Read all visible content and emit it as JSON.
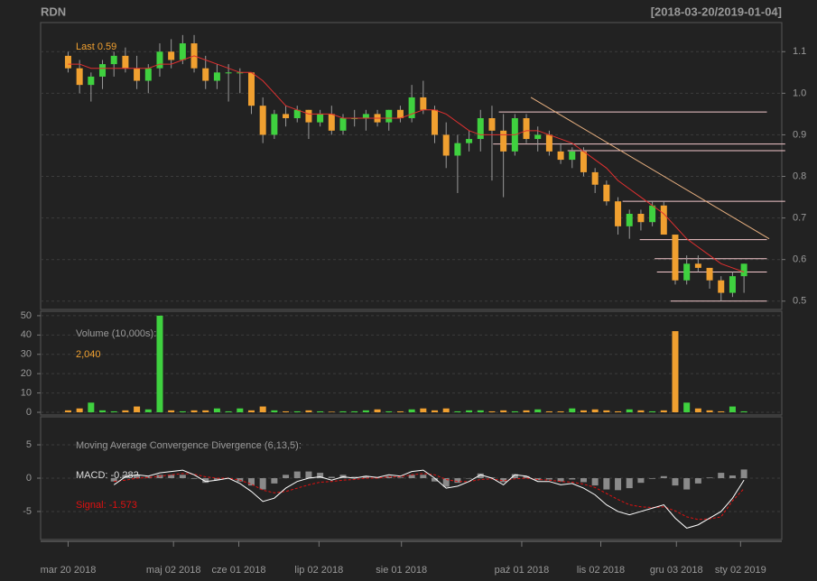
{
  "chart_data": [
    {
      "type": "candlestick",
      "title": "RDN",
      "subtitle": "[2018-03-20/2019-01-04]",
      "annotation": "Last 0.59",
      "up_color": "#3fd13f",
      "down_color": "#f0a030",
      "ma_color": "#e03030",
      "ylim": [
        0.48,
        1.17
      ],
      "xlim": [
        -2.4,
        62.3
      ],
      "yticks": [
        0.5,
        0.6,
        0.7,
        0.8,
        0.9,
        {
          "value": 1,
          "label": "1.0"
        },
        1.1
      ],
      "grid": true,
      "open": [
        1.09,
        1.06,
        1.02,
        1.04,
        1.07,
        1.09,
        1.06,
        1.03,
        1.06,
        1.1,
        1.08,
        1.12,
        1.06,
        1.03,
        1.05,
        1.05,
        1.05,
        0.97,
        0.9,
        0.95,
        0.94,
        0.96,
        0.93,
        0.95,
        0.91,
        0.94,
        0.94,
        0.95,
        0.93,
        0.96,
        0.94,
        0.99,
        0.96,
        0.9,
        0.85,
        0.88,
        0.89,
        0.94,
        0.91,
        0.86,
        0.94,
        0.89,
        0.9,
        0.86,
        0.84,
        0.86,
        0.81,
        0.78,
        0.74,
        0.68,
        0.71,
        0.69,
        0.73,
        0.66,
        0.55,
        0.59,
        0.58,
        0.55,
        0.52,
        0.56
      ],
      "high": [
        1.1,
        1.08,
        1.05,
        1.08,
        1.1,
        1.11,
        1.09,
        1.07,
        1.12,
        1.13,
        1.14,
        1.14,
        1.09,
        1.07,
        1.07,
        1.06,
        1.05,
        0.99,
        0.96,
        0.97,
        0.97,
        0.96,
        0.96,
        0.97,
        0.95,
        0.96,
        0.96,
        0.96,
        0.96,
        0.97,
        1.02,
        1.03,
        0.97,
        0.93,
        0.9,
        0.91,
        0.96,
        0.97,
        0.95,
        0.95,
        0.95,
        0.92,
        0.91,
        0.88,
        0.87,
        0.87,
        0.82,
        0.79,
        0.75,
        0.72,
        0.72,
        0.74,
        0.74,
        0.66,
        0.61,
        0.61,
        0.58,
        0.56,
        0.57,
        0.59
      ],
      "low": [
        1.05,
        1.0,
        0.98,
        1.01,
        1.04,
        1.05,
        1.01,
        1.0,
        1.04,
        1.06,
        1.07,
        1.05,
        1.01,
        1.01,
        0.98,
        1.0,
        0.95,
        0.88,
        0.89,
        0.92,
        0.93,
        0.89,
        0.92,
        0.9,
        0.9,
        0.92,
        0.91,
        0.92,
        0.91,
        0.93,
        0.93,
        0.95,
        0.88,
        0.82,
        0.76,
        0.86,
        0.86,
        0.79,
        0.75,
        0.85,
        0.88,
        0.86,
        0.85,
        0.83,
        0.82,
        0.8,
        0.76,
        0.73,
        0.66,
        0.65,
        0.67,
        0.68,
        0.66,
        0.54,
        0.54,
        0.57,
        0.53,
        0.5,
        0.51,
        0.52
      ],
      "close": [
        1.06,
        1.02,
        1.04,
        1.07,
        1.09,
        1.06,
        1.03,
        1.06,
        1.1,
        1.08,
        1.12,
        1.06,
        1.03,
        1.05,
        1.05,
        1.05,
        0.97,
        0.9,
        0.95,
        0.94,
        0.96,
        0.93,
        0.95,
        0.91,
        0.94,
        0.94,
        0.95,
        0.93,
        0.96,
        0.94,
        0.99,
        0.96,
        0.9,
        0.85,
        0.88,
        0.89,
        0.94,
        0.91,
        0.86,
        0.94,
        0.89,
        0.9,
        0.86,
        0.84,
        0.86,
        0.81,
        0.78,
        0.74,
        0.68,
        0.71,
        0.69,
        0.73,
        0.66,
        0.55,
        0.59,
        0.58,
        0.55,
        0.52,
        0.56,
        0.59
      ],
      "ma": [
        1.07,
        1.07,
        1.06,
        1.06,
        1.06,
        1.06,
        1.06,
        1.06,
        1.07,
        1.07,
        1.08,
        1.09,
        1.08,
        1.07,
        1.06,
        1.05,
        1.05,
        1.03,
        1.0,
        0.97,
        0.96,
        0.95,
        0.95,
        0.95,
        0.94,
        0.94,
        0.94,
        0.94,
        0.94,
        0.94,
        0.95,
        0.96,
        0.96,
        0.95,
        0.93,
        0.91,
        0.9,
        0.9,
        0.9,
        0.9,
        0.91,
        0.91,
        0.9,
        0.89,
        0.88,
        0.86,
        0.84,
        0.82,
        0.79,
        0.77,
        0.75,
        0.73,
        0.71,
        0.68,
        0.65,
        0.63,
        0.61,
        0.59,
        0.58,
        0.57
      ],
      "trendline": {
        "color": "#e8b080",
        "x": [
          40.4,
          61.2
        ],
        "y": [
          0.99,
          0.65
        ]
      },
      "hlines": {
        "color": "#f4c8cc",
        "y": [
          0.955,
          0.878,
          0.862,
          0.74,
          0.648,
          0.602,
          0.57,
          0.5
        ],
        "x0": [
          37.6,
          37.1,
          43.6,
          48.4,
          49.9,
          51.2,
          51.4,
          52.6
        ],
        "x1": [
          61,
          62.6,
          62.6,
          62.6,
          61,
          61,
          61,
          61
        ]
      }
    },
    {
      "type": "volume",
      "title": "Volume (10,000s):",
      "annotation": "2,040",
      "ylim": [
        -1.4,
        52.3
      ],
      "xlim": [
        -2.4,
        62.3
      ],
      "yticks": [
        0,
        10,
        20,
        30,
        40,
        50
      ],
      "grid": true,
      "values": [
        1,
        2,
        5,
        1,
        0.5,
        1,
        3,
        1.5,
        50,
        1,
        0.5,
        1,
        1,
        2,
        0.5,
        2,
        1,
        3,
        1,
        0.5,
        0.5,
        1,
        0.5,
        0.3,
        0.5,
        0.5,
        1,
        1.5,
        0.5,
        0.5,
        1.5,
        2,
        1,
        2,
        0.5,
        1,
        1,
        0.5,
        1,
        0.5,
        1,
        1.5,
        0.5,
        0.5,
        2,
        1,
        1.5,
        1,
        0.5,
        1.5,
        1,
        0.5,
        1,
        42,
        5,
        2,
        1,
        0.5,
        3,
        0.5
      ]
    },
    {
      "type": "macd",
      "title": "Moving Average Convergence Divergence (6,13,5):",
      "macd_label": "MACD: -0.282",
      "signal_label": "Signal: -1.573",
      "macd_color": "#ffffff",
      "signal_color": "#e01010",
      "hist_color": "#8a8a8a",
      "ylim": [
        -9.2,
        9.2
      ],
      "xlim": [
        -2.4,
        62.3
      ],
      "yticks": [
        -5,
        0,
        5
      ],
      "grid": true,
      "macd": [
        null,
        null,
        null,
        null,
        -1,
        0.2,
        0.5,
        0.3,
        0.8,
        1,
        1.2,
        0.5,
        -0.5,
        -0.3,
        0,
        -0.8,
        -2,
        -3.5,
        -3,
        -1.5,
        -0.5,
        0,
        0.2,
        -0.3,
        0.2,
        0,
        0.3,
        0.1,
        0.5,
        0.3,
        1,
        1.2,
        0,
        -1.5,
        -1.2,
        -0.5,
        0.5,
        0,
        -1,
        0.5,
        0.3,
        -0.5,
        -0.5,
        -1,
        -0.8,
        -1.5,
        -2.5,
        -4,
        -5,
        -5.5,
        -5,
        -4.5,
        -4,
        -6,
        -7.5,
        -7,
        -6,
        -5,
        -3,
        -0.282
      ],
      "signal": [
        null,
        null,
        null,
        null,
        -0.5,
        -0.3,
        0,
        0.1,
        0.3,
        0.5,
        0.7,
        0.6,
        0.2,
        0,
        0,
        -0.3,
        -0.9,
        -1.8,
        -2.2,
        -2,
        -1.5,
        -1,
        -0.6,
        -0.5,
        -0.3,
        -0.2,
        0,
        0,
        0.2,
        0.2,
        0.5,
        0.7,
        0.5,
        -0.2,
        -0.5,
        -0.5,
        -0.2,
        -0.1,
        -0.4,
        -0.1,
        0,
        -0.2,
        -0.3,
        -0.5,
        -0.6,
        -0.9,
        -1.4,
        -2.3,
        -3.2,
        -4,
        -4.3,
        -4.4,
        -4.3,
        -4.9,
        -5.8,
        -6.2,
        -6.1,
        -5.8,
        -3.4,
        -1.573
      ],
      "histogram": [
        null,
        null,
        null,
        null,
        -0.5,
        0.5,
        0.5,
        0.2,
        0.5,
        0.5,
        0.5,
        -0.1,
        -0.7,
        -0.3,
        0,
        -0.5,
        -1.1,
        -1.7,
        -0.8,
        0.5,
        1,
        1,
        0.8,
        0.2,
        0.5,
        0.2,
        0.3,
        0.1,
        0.3,
        0.1,
        0.5,
        0.5,
        -0.5,
        -1.3,
        -0.7,
        0,
        0.7,
        0.1,
        -0.6,
        0.6,
        0.3,
        -0.3,
        -0.2,
        -0.5,
        -0.2,
        -0.6,
        -1.1,
        -1.7,
        -1.8,
        -1.5,
        -0.7,
        -0.1,
        0.3,
        -1.1,
        -1.7,
        -0.8,
        0.1,
        0.8,
        0.4,
        1.3
      ],
      "xticks": [
        {
          "value": 0,
          "label": "mar 20 2018"
        },
        {
          "value": 9.2,
          "label": "maj 02 2018"
        },
        {
          "value": 14.9,
          "label": "cze 01 2018"
        },
        {
          "value": 21.9,
          "label": "lip 02 2018"
        },
        {
          "value": 29.1,
          "label": "sie 01 2018"
        },
        {
          "value": 39.6,
          "label": "paź 01 2018"
        },
        {
          "value": 46.5,
          "label": "lis 02 2018"
        },
        {
          "value": 53.1,
          "label": "gru 03 2018"
        },
        {
          "value": 58.7,
          "label": "sty 02 2019"
        }
      ]
    }
  ]
}
